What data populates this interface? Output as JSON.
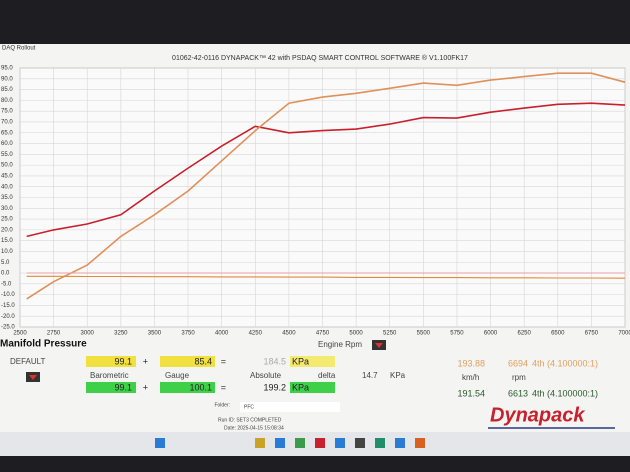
{
  "window": {
    "title": "DAQ Rollout"
  },
  "chart_data": {
    "type": "line",
    "title": "01062-42-0116 DYNAPACK™ 42 with PSDAQ SMART CONTROL SOFTWARE ® V1.100FK17",
    "x_label": "Engine Rpm",
    "x": [
      2550,
      2750,
      3000,
      3250,
      3500,
      3750,
      4000,
      4250,
      4500,
      4750,
      5000,
      5250,
      5500,
      5750,
      6000,
      6250,
      6500,
      6750,
      7000
    ],
    "series": [
      {
        "color": "#c8202c",
        "values": [
          17,
          20,
          22.7,
          27,
          38,
          48.6,
          58.8,
          68,
          65,
          66,
          66.7,
          69,
          72,
          71.8,
          74.5,
          76.4,
          78.2,
          78.7,
          77.8
        ]
      },
      {
        "color": "#e0905a",
        "values": [
          -12,
          -4,
          3.7,
          17,
          27,
          38,
          52,
          66,
          78.7,
          81.5,
          83.3,
          85.6,
          88,
          87,
          89.4,
          91,
          92.6,
          92.6,
          88.4
        ]
      },
      {
        "color": "#e8a0a8",
        "values": [
          0,
          0,
          0,
          0,
          0,
          0,
          0,
          0,
          0,
          0,
          0,
          0,
          0,
          0,
          0,
          0,
          0,
          0,
          0
        ]
      },
      {
        "color": "#e08a3a",
        "values": [
          -1.5,
          -1.5,
          -1.6,
          -1.6,
          -1.7,
          -1.7,
          -1.8,
          -1.8,
          -1.9,
          -1.9,
          -2,
          -2,
          -2.1,
          -2.1,
          -2.2,
          -2.2,
          -2.3,
          -2.3,
          -2.4
        ]
      }
    ],
    "xlim": [
      2500,
      7000
    ],
    "xticks": [
      2500,
      2750,
      3000,
      3250,
      3500,
      3750,
      4000,
      4250,
      4500,
      4750,
      5000,
      5250,
      5500,
      5750,
      6000,
      6250,
      6500,
      6750,
      7000
    ],
    "ylim": [
      -25,
      95
    ],
    "yticks": [
      {
        "value": 95,
        "label": "95.0"
      },
      {
        "value": 90,
        "label": "90.0"
      },
      {
        "value": 85,
        "label": "85.0"
      },
      {
        "value": 80,
        "label": "80.0"
      },
      {
        "value": 75,
        "label": "75.0"
      },
      {
        "value": 70,
        "label": "70.0"
      },
      {
        "value": 65,
        "label": "65.0"
      },
      {
        "value": 60,
        "label": "60.0"
      },
      {
        "value": 55,
        "label": "55.0"
      },
      {
        "value": 50,
        "label": "50.0"
      },
      {
        "value": 45,
        "label": "45.0"
      },
      {
        "value": 40,
        "label": "40.0"
      },
      {
        "value": 35,
        "label": "35.0"
      },
      {
        "value": 30,
        "label": "30.0"
      },
      {
        "value": 25,
        "label": "25.0"
      },
      {
        "value": 20,
        "label": "20.0"
      },
      {
        "value": 15,
        "label": "15.0"
      },
      {
        "value": 10,
        "label": "10.0"
      },
      {
        "value": 5,
        "label": "5.0"
      },
      {
        "value": 0,
        "label": "0.0"
      },
      {
        "value": -5,
        "label": "-5.0"
      },
      {
        "value": -10,
        "label": "-10.0"
      },
      {
        "value": -15,
        "label": "-15.0"
      },
      {
        "value": -20,
        "label": "-20.0"
      },
      {
        "value": -25,
        "label": "-25.0"
      }
    ],
    "grid": true
  },
  "panel": {
    "title": "Manifold Pressure",
    "preset": "DEFAULT",
    "row1": [
      "99.1",
      "+",
      "85.4",
      "=",
      "184.5",
      "KPa"
    ],
    "labels": [
      "Barometric",
      "Gauge",
      "Absolute",
      "delta",
      "14.7",
      "KPa"
    ],
    "row2": [
      "99.1",
      "+",
      "100.1",
      "=",
      "199.2",
      "KPa"
    ],
    "speed1": [
      "193.88",
      "6694",
      "4th (4.100000:1)"
    ],
    "units": [
      "km/h",
      "rpm"
    ],
    "speed2": [
      "191.54",
      "6613",
      "4th (4.100000:1)"
    ],
    "folder_label": "Folder:",
    "folder": "PFC",
    "run_id": "Run ID: SET3 COMPLETED",
    "date": "Date: 2025-04-15 15:08:34",
    "brand": "Dynapack"
  }
}
